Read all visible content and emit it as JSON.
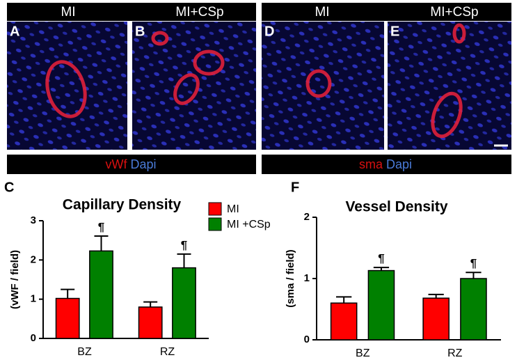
{
  "panels": {
    "headers": [
      {
        "left": "MI",
        "right": "MI+CSp"
      },
      {
        "left": "MI",
        "right": "MI+CSp"
      }
    ],
    "images": [
      "A",
      "B",
      "D",
      "E"
    ],
    "stains": [
      {
        "marker": "vWf",
        "counter": "Dapi"
      },
      {
        "marker": "sma",
        "counter": "Dapi"
      }
    ]
  },
  "chart_data": [
    {
      "type": "bar",
      "panel": "C",
      "title": "Capillary Density",
      "y_label": "(vWF / field)",
      "categories": [
        "BZ",
        "RZ"
      ],
      "series": [
        {
          "name": "MI",
          "color": "#ff0000",
          "values": [
            1.02,
            0.8
          ],
          "errors": [
            0.23,
            0.13
          ]
        },
        {
          "name": "MI +CSp",
          "color": "#008000",
          "values": [
            2.23,
            1.8
          ],
          "errors": [
            0.38,
            0.35
          ],
          "marker_labels": [
            "¶",
            "¶"
          ]
        }
      ],
      "ylim": [
        0,
        3
      ],
      "yticks": [
        0,
        1,
        2,
        3
      ],
      "legend": "top-right"
    },
    {
      "type": "bar",
      "panel": "F",
      "title": "Vessel Density",
      "y_label": "(sma / field)",
      "categories": [
        "BZ",
        "RZ"
      ],
      "series": [
        {
          "name": "MI",
          "color": "#ff0000",
          "values": [
            0.6,
            0.68
          ],
          "errors": [
            0.1,
            0.06
          ]
        },
        {
          "name": "MI +CSp",
          "color": "#008000",
          "values": [
            1.13,
            1.0
          ],
          "errors": [
            0.05,
            0.1
          ],
          "marker_labels": [
            "¶",
            "¶"
          ]
        }
      ],
      "ylim": [
        0,
        2
      ],
      "yticks": [
        0,
        1,
        2
      ]
    }
  ]
}
